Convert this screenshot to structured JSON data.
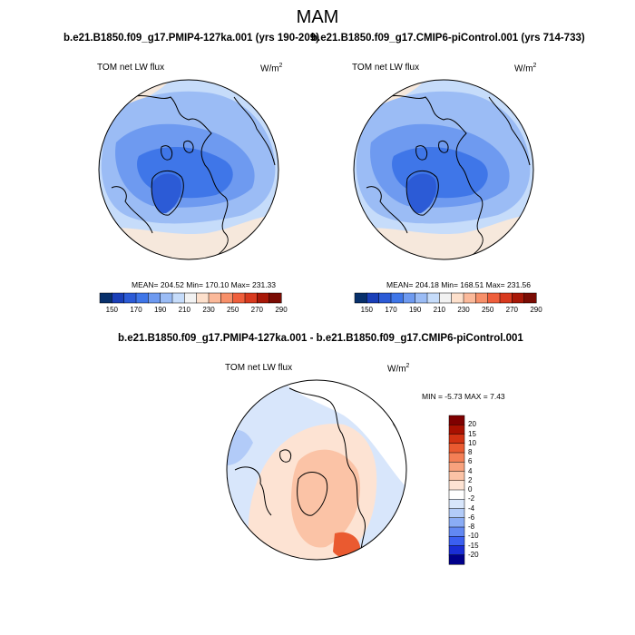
{
  "main_title": "MAM",
  "panels": [
    {
      "title": "b.e21.B1850.f09_g17.PMIP4-127ka.001 (yrs 190-209)",
      "variable": "TOM net LW flux",
      "units_base": "W/m",
      "units_exp": "2",
      "stats": "MEAN= 204.52  Min= 170.10  Max= 231.33"
    },
    {
      "title": "b.e21.B1850.f09_g17.CMIP6-piControl.001 (yrs 714-733)",
      "variable": "TOM net LW flux",
      "units_base": "W/m",
      "units_exp": "2",
      "stats": "MEAN= 204.18  Min= 168.51  Max= 231.56"
    },
    {
      "title": "b.e21.B1850.f09_g17.PMIP4-127ka.001 - b.e21.B1850.f09_g17.CMIP6-piControl.001",
      "variable": "TOM net LW flux",
      "units_base": "W/m",
      "units_exp": "2",
      "stats": "MIN =  -5.73 MAX =   7.43"
    }
  ],
  "colorbar_top": {
    "colors": [
      "#08306b",
      "#1a3fb8",
      "#2c5bd6",
      "#3f76e8",
      "#6e9af0",
      "#9bbcf5",
      "#c6dcfa",
      "#f2f2f2",
      "#fde0cc",
      "#fbb99a",
      "#f7906a",
      "#ef5f3c",
      "#d83a1f",
      "#a81808",
      "#7a0c04"
    ],
    "labels": [
      "150",
      "170",
      "190",
      "210",
      "230",
      "250",
      "270",
      "290"
    ]
  },
  "colorbar_diff": {
    "colors": [
      "#00008b",
      "#1a2ed6",
      "#3b5ff0",
      "#6288f2",
      "#8aacf5",
      "#b2cbf8",
      "#d8e6fb",
      "#ffffff",
      "#fde3d3",
      "#fbc3a6",
      "#f8a27d",
      "#f47f55",
      "#ea5a30",
      "#d23212",
      "#a81000",
      "#7f0000"
    ],
    "labels": [
      "20",
      "15",
      "10",
      "8",
      "6",
      "4",
      "2",
      "0",
      "-2",
      "-4",
      "-6",
      "-8",
      "-10",
      "-15",
      "-20"
    ]
  },
  "chart_data": [
    {
      "type": "heatmap",
      "projection": "north polar stereographic",
      "title": "b.e21.B1850.f09_g17.PMIP4-127ka.001 (yrs 190-209)",
      "season": "MAM",
      "variable": "TOM net LW flux",
      "units": "W/m2",
      "mean": 204.52,
      "min": 170.1,
      "max": 231.33,
      "contour_levels": [
        150,
        160,
        170,
        180,
        190,
        200,
        210,
        220,
        230,
        240,
        250,
        260,
        270,
        280,
        290
      ]
    },
    {
      "type": "heatmap",
      "projection": "north polar stereographic",
      "title": "b.e21.B1850.f09_g17.CMIP6-piControl.001 (yrs 714-733)",
      "season": "MAM",
      "variable": "TOM net LW flux",
      "units": "W/m2",
      "mean": 204.18,
      "min": 168.51,
      "max": 231.56,
      "contour_levels": [
        150,
        160,
        170,
        180,
        190,
        200,
        210,
        220,
        230,
        240,
        250,
        260,
        270,
        280,
        290
      ]
    },
    {
      "type": "heatmap",
      "projection": "north polar stereographic",
      "title": "b.e21.B1850.f09_g17.PMIP4-127ka.001 - b.e21.B1850.f09_g17.CMIP6-piControl.001",
      "season": "MAM",
      "variable": "TOM net LW flux",
      "units": "W/m2",
      "min": -5.73,
      "max": 7.43,
      "contour_levels": [
        -20,
        -15,
        -10,
        -8,
        -6,
        -4,
        -2,
        0,
        2,
        4,
        6,
        8,
        10,
        15,
        20
      ]
    }
  ]
}
